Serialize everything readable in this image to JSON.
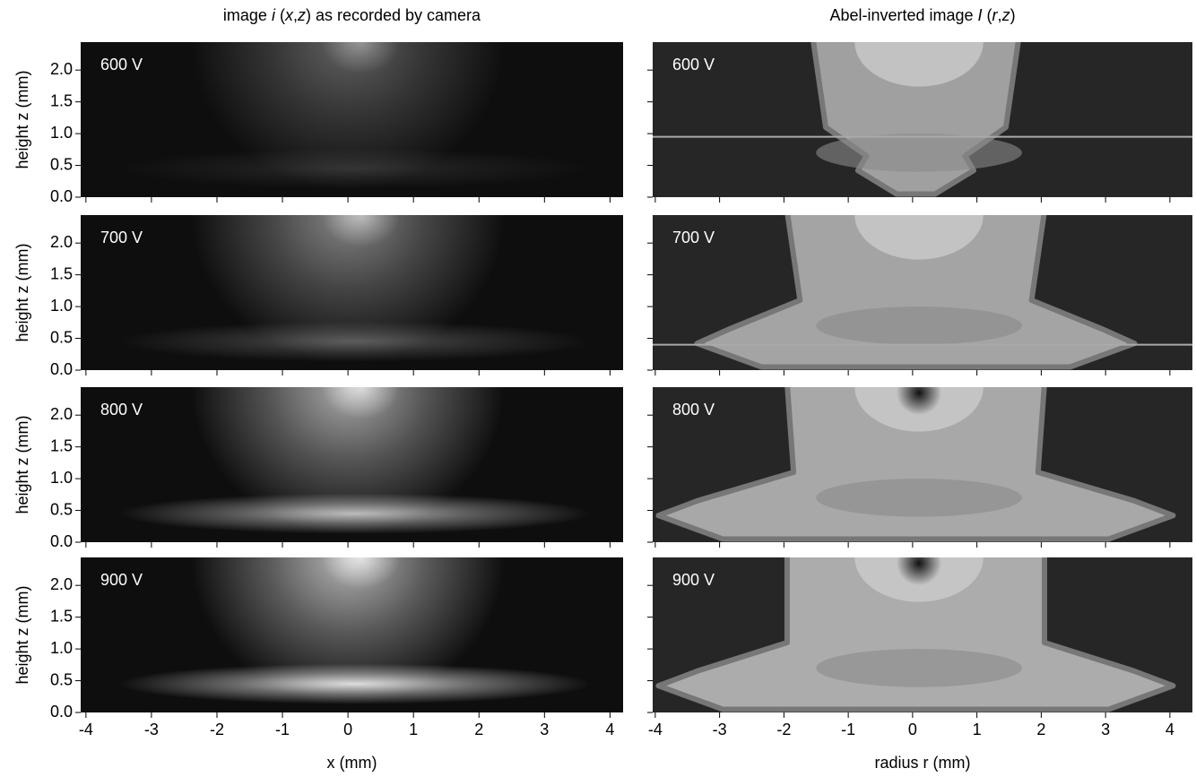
{
  "columns": [
    {
      "title": {
        "parts": [
          "image ",
          "i",
          " (",
          "x",
          ",",
          "z",
          ") as recorded by camera"
        ],
        "italic": [
          false,
          true,
          false,
          true,
          false,
          true,
          false
        ]
      },
      "xlabel": "x (mm)",
      "xlim": [
        -4.08,
        4.2
      ],
      "xticks": [
        -4,
        -3,
        -2,
        -1,
        0,
        1,
        2,
        3,
        4
      ]
    },
    {
      "title": {
        "parts": [
          "Abel-inverted image ",
          "I",
          " (",
          "r",
          ",",
          "z",
          ")"
        ],
        "italic": [
          false,
          true,
          false,
          true,
          false,
          true,
          false
        ]
      },
      "xlabel": "radius r (mm)",
      "xlim": [
        -4.04,
        4.35
      ],
      "xticks": [
        -4,
        -3,
        -2,
        -1,
        0,
        1,
        2,
        3,
        4
      ]
    }
  ],
  "ylabel": "height z (mm)",
  "ylim": [
    0,
    2.44
  ],
  "yticks": [
    {
      "value": 0,
      "label": "0.0"
    },
    {
      "value": 0.5,
      "label": "0.5"
    },
    {
      "value": 1,
      "label": "1.0"
    },
    {
      "value": 1.5,
      "label": "1.5"
    },
    {
      "value": 2,
      "label": "2.0"
    }
  ],
  "panels": [
    "600 V",
    "700 V",
    "800 V",
    "900 V"
  ]
}
